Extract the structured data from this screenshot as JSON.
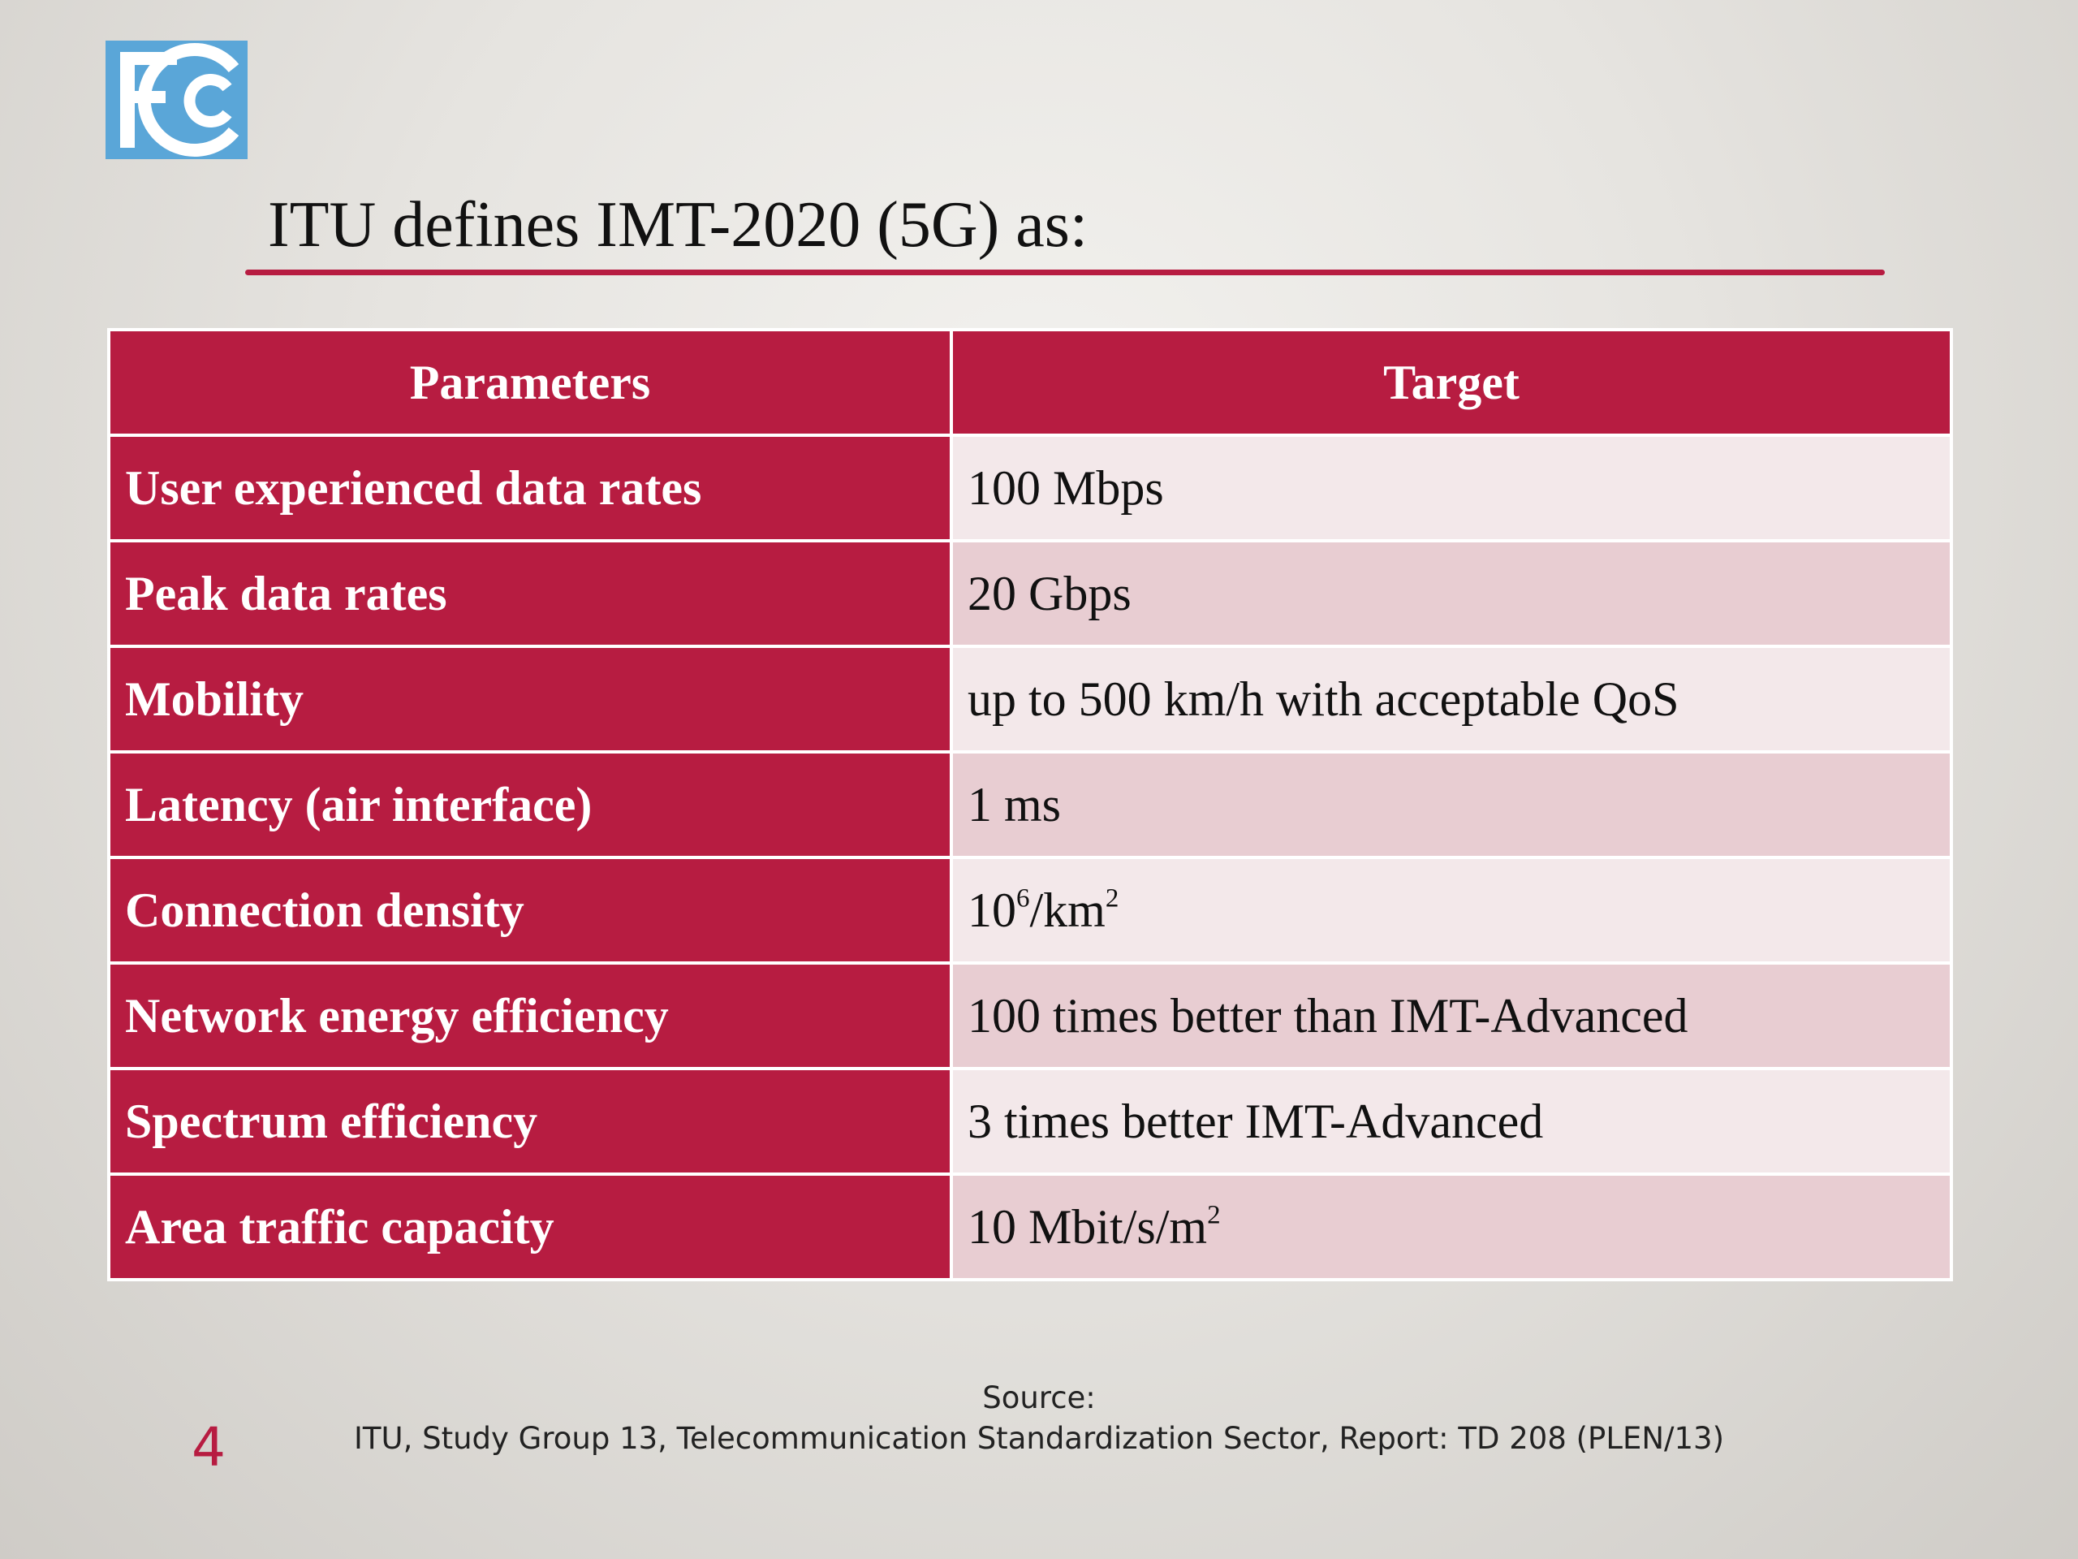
{
  "logo": {
    "text": "FCC"
  },
  "title": "ITU defines IMT-2020 (5G) as:",
  "table": {
    "headers": [
      "Parameters",
      "Target"
    ],
    "rows": [
      {
        "parameter": "User experienced data rates",
        "target": "100 Mbps"
      },
      {
        "parameter": "Peak data rates",
        "target": "20 Gbps"
      },
      {
        "parameter": "Mobility",
        "target": "up to 500 km/h with acceptable QoS"
      },
      {
        "parameter": "Latency (air interface)",
        "target": "1 ms"
      },
      {
        "parameter": "Connection density",
        "target": "10",
        "target_sup1": "6",
        "target_mid": "/km",
        "target_sup2": "2"
      },
      {
        "parameter": "Network energy efficiency",
        "target": "100 times better than IMT-Advanced"
      },
      {
        "parameter": "Spectrum efficiency",
        "target": "3 times better IMT-Advanced"
      },
      {
        "parameter": "Area traffic capacity",
        "target": "10 Mbit/s/m",
        "target_sup": "2"
      }
    ]
  },
  "source": {
    "label": "Source:",
    "reference": "ITU, Study Group 13, Telecommunication Standardization Sector, Report: TD 208 (PLEN/13)"
  },
  "page_number": "4",
  "colors": {
    "accent": "#b71c41",
    "row_dark": "#e8cdd2",
    "row_light": "#f3e8ea",
    "logo_blue": "#5aa6d8"
  }
}
